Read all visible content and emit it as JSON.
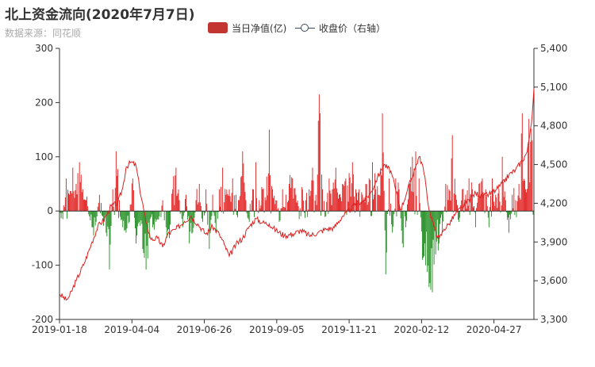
{
  "title": "北上资金流向(2020年7月7日)",
  "subtitle": "数据来源：同花顺",
  "colors": {
    "bar_pos": "#e11b1b",
    "bar_neg": "#1e8c1e",
    "line": "#dd2222",
    "legend_bar": "#c23531",
    "legend_line": "#3b4a5c",
    "axis": "#333333",
    "tick_text": "#333333"
  },
  "legend": [
    {
      "name": "当日净值(亿)",
      "kind": "bar"
    },
    {
      "name": "收盘价（右轴）",
      "kind": "line"
    }
  ],
  "chart_data": {
    "type": "bar",
    "x_tick_labels": [
      "2019-01-18",
      "2019-04-04",
      "2019-06-26",
      "2019-09-05",
      "2019-11-21",
      "2020-02-12",
      "2020-04-27"
    ],
    "y_left": {
      "min": -200,
      "max": 300,
      "ticks": [
        "-200",
        "-100",
        "0",
        "100",
        "200",
        "300"
      ]
    },
    "y_right": {
      "min": 3300,
      "max": 5400,
      "ticks": [
        "3,300",
        "3,600",
        "3,900",
        "4,200",
        "4,500",
        "4,800",
        "5,100",
        "5,400"
      ]
    },
    "series": [
      {
        "name": "当日净值(亿)",
        "kind": "bar",
        "anchors": [
          [
            0,
            40
          ],
          [
            4,
            -15
          ],
          [
            8,
            60
          ],
          [
            12,
            30
          ],
          [
            16,
            80
          ],
          [
            20,
            50
          ],
          [
            24,
            90
          ],
          [
            28,
            40
          ],
          [
            32,
            20
          ],
          [
            36,
            -10
          ],
          [
            40,
            -30
          ],
          [
            44,
            -20
          ],
          [
            48,
            30
          ],
          [
            52,
            -10
          ],
          [
            56,
            -40
          ],
          [
            60,
            -108
          ],
          [
            64,
            40
          ],
          [
            68,
            110
          ],
          [
            72,
            20
          ],
          [
            76,
            -30
          ],
          [
            80,
            -40
          ],
          [
            84,
            -20
          ],
          [
            88,
            60
          ],
          [
            92,
            -60
          ],
          [
            96,
            -20
          ],
          [
            100,
            -70
          ],
          [
            104,
            -108
          ],
          [
            108,
            -50
          ],
          [
            112,
            -30
          ],
          [
            116,
            -20
          ],
          [
            120,
            -10
          ],
          [
            124,
            20
          ],
          [
            128,
            -30
          ],
          [
            132,
            -50
          ],
          [
            136,
            40
          ],
          [
            140,
            80
          ],
          [
            144,
            20
          ],
          [
            148,
            -30
          ],
          [
            152,
            30
          ],
          [
            156,
            -60
          ],
          [
            160,
            -40
          ],
          [
            164,
            20
          ],
          [
            168,
            50
          ],
          [
            172,
            -20
          ],
          [
            176,
            40
          ],
          [
            180,
            -70
          ],
          [
            184,
            30
          ],
          [
            188,
            -40
          ],
          [
            192,
            40
          ],
          [
            196,
            80
          ],
          [
            200,
            30
          ],
          [
            204,
            40
          ],
          [
            208,
            60
          ],
          [
            212,
            30
          ],
          [
            216,
            20
          ],
          [
            220,
            110
          ],
          [
            224,
            20
          ],
          [
            228,
            -20
          ],
          [
            232,
            40
          ],
          [
            236,
            90
          ],
          [
            240,
            20
          ],
          [
            244,
            40
          ],
          [
            248,
            20
          ],
          [
            252,
            150
          ],
          [
            256,
            40
          ],
          [
            260,
            20
          ],
          [
            264,
            -20
          ],
          [
            268,
            40
          ],
          [
            272,
            30
          ],
          [
            276,
            50
          ],
          [
            280,
            60
          ],
          [
            284,
            30
          ],
          [
            288,
            -15
          ],
          [
            292,
            40
          ],
          [
            296,
            20
          ],
          [
            300,
            40
          ],
          [
            304,
            80
          ],
          [
            308,
            30
          ],
          [
            312,
            215
          ],
          [
            316,
            40
          ],
          [
            320,
            -10
          ],
          [
            324,
            60
          ],
          [
            328,
            40
          ],
          [
            332,
            80
          ],
          [
            336,
            30
          ],
          [
            340,
            50
          ],
          [
            344,
            60
          ],
          [
            348,
            70
          ],
          [
            352,
            90
          ],
          [
            356,
            40
          ],
          [
            360,
            40
          ],
          [
            364,
            30
          ],
          [
            368,
            50
          ],
          [
            372,
            60
          ],
          [
            376,
            90
          ],
          [
            380,
            40
          ],
          [
            384,
            30
          ],
          [
            388,
            180
          ],
          [
            392,
            -117
          ],
          [
            396,
            60
          ],
          [
            400,
            -40
          ],
          [
            404,
            60
          ],
          [
            408,
            40
          ],
          [
            412,
            -60
          ],
          [
            416,
            -30
          ],
          [
            420,
            50
          ],
          [
            424,
            100
          ],
          [
            428,
            110
          ],
          [
            432,
            60
          ],
          [
            436,
            -90
          ],
          [
            440,
            -100
          ],
          [
            444,
            -140
          ],
          [
            448,
            -150
          ],
          [
            452,
            -80
          ],
          [
            456,
            -60
          ],
          [
            460,
            -40
          ],
          [
            464,
            50
          ],
          [
            468,
            40
          ],
          [
            472,
            140
          ],
          [
            476,
            30
          ],
          [
            480,
            -20
          ],
          [
            484,
            40
          ],
          [
            488,
            30
          ],
          [
            492,
            60
          ],
          [
            496,
            40
          ],
          [
            500,
            -30
          ],
          [
            504,
            50
          ],
          [
            508,
            60
          ],
          [
            512,
            40
          ],
          [
            516,
            -30
          ],
          [
            520,
            60
          ],
          [
            524,
            30
          ],
          [
            528,
            40
          ],
          [
            532,
            100
          ],
          [
            536,
            20
          ],
          [
            540,
            -40
          ],
          [
            544,
            30
          ],
          [
            548,
            20
          ],
          [
            552,
            50
          ],
          [
            556,
            180
          ],
          [
            560,
            40
          ],
          [
            564,
            170
          ],
          [
            568,
            130
          ],
          [
            570,
            230
          ]
        ]
      },
      {
        "name": "收盘价（右轴）",
        "kind": "line",
        "anchors": [
          [
            0,
            3500
          ],
          [
            8,
            3450
          ],
          [
            12,
            3480
          ],
          [
            20,
            3600
          ],
          [
            30,
            3740
          ],
          [
            38,
            3880
          ],
          [
            46,
            4020
          ],
          [
            54,
            4080
          ],
          [
            62,
            4180
          ],
          [
            70,
            4200
          ],
          [
            76,
            4320
          ],
          [
            80,
            4480
          ],
          [
            86,
            4520
          ],
          [
            92,
            4490
          ],
          [
            96,
            4330
          ],
          [
            104,
            4050
          ],
          [
            110,
            3920
          ],
          [
            118,
            3930
          ],
          [
            124,
            3860
          ],
          [
            130,
            3960
          ],
          [
            140,
            4000
          ],
          [
            150,
            4060
          ],
          [
            158,
            4100
          ],
          [
            166,
            4040
          ],
          [
            176,
            3960
          ],
          [
            184,
            4020
          ],
          [
            192,
            3960
          ],
          [
            198,
            3880
          ],
          [
            204,
            3790
          ],
          [
            212,
            3880
          ],
          [
            220,
            3930
          ],
          [
            228,
            4020
          ],
          [
            236,
            4080
          ],
          [
            244,
            4050
          ],
          [
            252,
            4040
          ],
          [
            260,
            3990
          ],
          [
            270,
            3950
          ],
          [
            280,
            3960
          ],
          [
            290,
            3990
          ],
          [
            300,
            3950
          ],
          [
            310,
            3970
          ],
          [
            320,
            4000
          ],
          [
            330,
            4010
          ],
          [
            340,
            4100
          ],
          [
            350,
            4150
          ],
          [
            356,
            4200
          ],
          [
            364,
            4210
          ],
          [
            374,
            4280
          ],
          [
            382,
            4400
          ],
          [
            390,
            4500
          ],
          [
            398,
            4450
          ],
          [
            404,
            4300
          ],
          [
            410,
            4150
          ],
          [
            418,
            4300
          ],
          [
            426,
            4450
          ],
          [
            432,
            4560
          ],
          [
            436,
            4500
          ],
          [
            440,
            4350
          ],
          [
            444,
            4150
          ],
          [
            450,
            4020
          ],
          [
            456,
            3920
          ],
          [
            462,
            4000
          ],
          [
            468,
            4040
          ],
          [
            476,
            4120
          ],
          [
            484,
            4170
          ],
          [
            492,
            4230
          ],
          [
            500,
            4280
          ],
          [
            508,
            4250
          ],
          [
            516,
            4270
          ],
          [
            524,
            4300
          ],
          [
            532,
            4350
          ],
          [
            540,
            4420
          ],
          [
            548,
            4460
          ],
          [
            556,
            4530
          ],
          [
            562,
            4600
          ],
          [
            566,
            4780
          ],
          [
            568,
            4890
          ],
          [
            570,
            5090
          ]
        ]
      }
    ]
  }
}
